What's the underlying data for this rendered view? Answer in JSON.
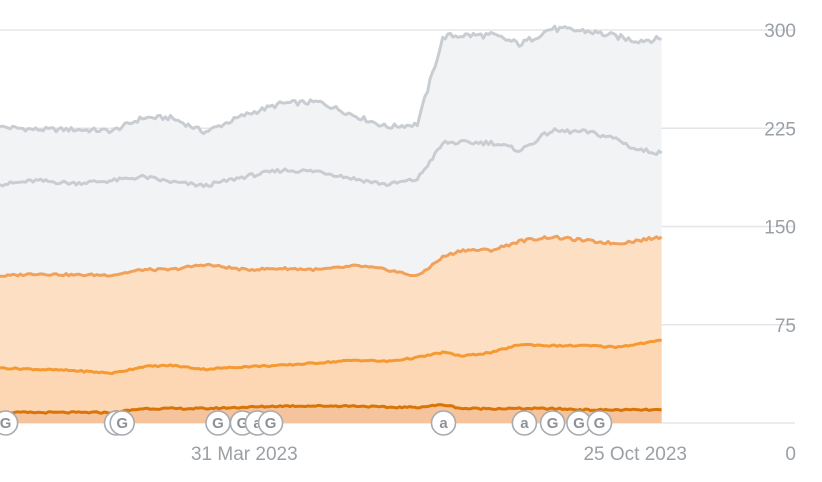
{
  "chart_data": {
    "type": "area",
    "ylim": [
      0,
      300
    ],
    "yticks": [
      0,
      75,
      150,
      225,
      300
    ],
    "y_axis_position": "right",
    "grid": true,
    "xlim": [
      "2022-11-21",
      "2024-01-18"
    ],
    "xtick_labels": [
      {
        "date": "2023-03-31",
        "label": "31 Mar 2023"
      },
      {
        "date": "2023-10-25",
        "label": "25 Oct 2023"
      }
    ],
    "x": [
      "2022-11-21",
      "2022-12-10",
      "2022-12-30",
      "2023-01-20",
      "2023-02-05",
      "2023-02-20",
      "2023-03-10",
      "2023-03-31",
      "2023-04-20",
      "2023-05-10",
      "2023-05-30",
      "2023-06-15",
      "2023-07-01",
      "2023-07-15",
      "2023-07-25",
      "2023-08-10",
      "2023-08-25",
      "2023-09-10",
      "2023-09-30",
      "2023-10-15",
      "2023-10-25",
      "2023-11-08"
    ],
    "series": [
      {
        "color": "#c9cdd2",
        "fill": "#f2f3f5",
        "values": [
          226,
          224,
          224,
          223,
          233,
          233,
          222,
          235,
          244,
          245,
          234,
          226,
          228,
          295,
          296,
          296,
          289,
          301,
          299,
          295,
          292,
          293
        ]
      },
      {
        "color": "#c9cdd2",
        "fill": "#f2f3f5",
        "values": [
          182,
          185,
          183,
          185,
          188,
          184,
          181,
          188,
          193,
          192,
          186,
          182,
          186,
          214,
          214,
          214,
          208,
          223,
          222,
          217,
          209,
          206
        ]
      },
      {
        "color": "#f2a15a",
        "fill": "#fde0c4",
        "values": [
          112,
          114,
          113,
          113,
          117,
          117,
          121,
          117,
          118,
          117,
          120,
          117,
          112,
          127,
          132,
          132,
          139,
          142,
          139,
          137,
          139,
          142
        ]
      },
      {
        "color": "#f59a33",
        "fill": "#fdd6b4",
        "values": [
          42,
          41,
          40,
          38,
          43,
          44,
          41,
          43,
          44,
          46,
          48,
          47,
          50,
          54,
          51,
          54,
          60,
          59,
          59,
          58,
          60,
          63
        ]
      },
      {
        "color": "#d97406",
        "fill": "#f5c49c",
        "values": [
          8,
          8,
          8,
          8,
          11,
          11,
          11,
          12,
          13,
          13,
          13,
          12,
          12,
          14,
          11,
          11,
          11,
          11,
          10,
          10,
          10,
          10
        ]
      }
    ],
    "annotations": [
      {
        "date": "2022-11-24",
        "label": "G"
      },
      {
        "date": "2023-01-22",
        "label": "G"
      },
      {
        "date": "2023-01-25",
        "label": "G"
      },
      {
        "date": "2023-03-17",
        "label": "G"
      },
      {
        "date": "2023-03-30",
        "label": "G"
      },
      {
        "date": "2023-04-07",
        "label": "a"
      },
      {
        "date": "2023-04-14",
        "label": "G"
      },
      {
        "date": "2023-07-15",
        "label": "a"
      },
      {
        "date": "2023-08-27",
        "label": "a"
      },
      {
        "date": "2023-09-11",
        "label": "G"
      },
      {
        "date": "2023-09-25",
        "label": "G"
      },
      {
        "date": "2023-10-06",
        "label": "G"
      }
    ]
  }
}
